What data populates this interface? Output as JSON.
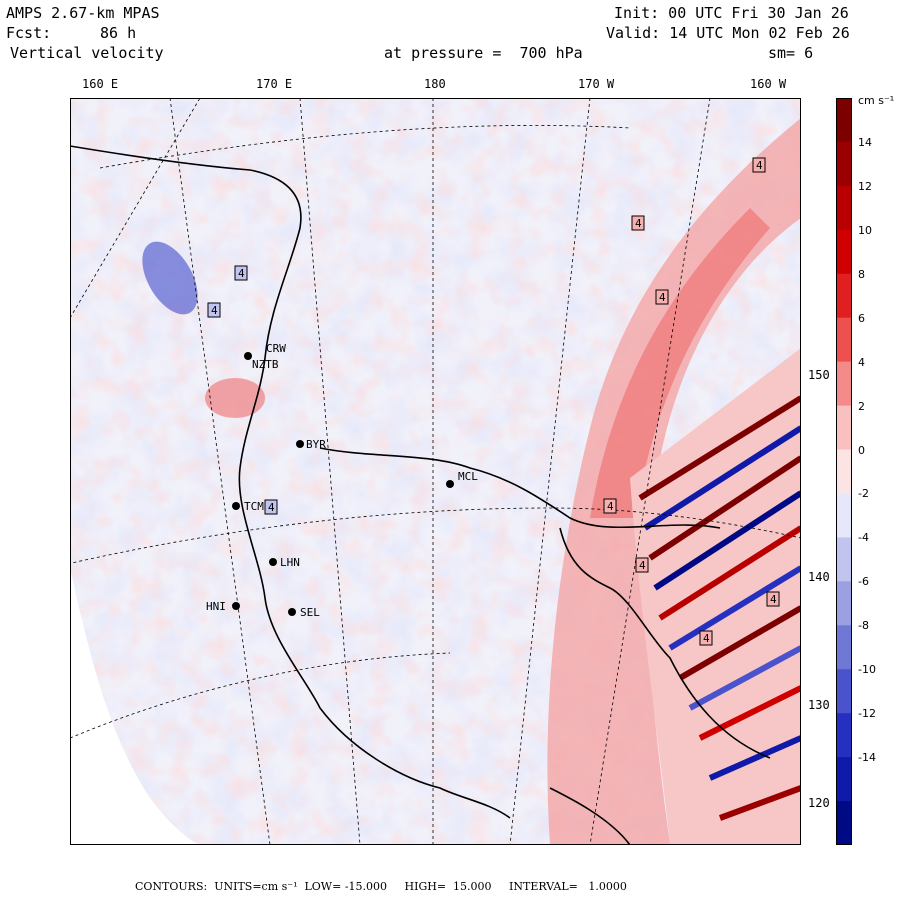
{
  "header": {
    "model": "AMPS 2.67-km MPAS",
    "forecast_label": "Fcst:",
    "forecast_hours": "86 h",
    "field": "Vertical velocity",
    "init": "Init: 00 UTC Fri 30 Jan 26",
    "valid": "Valid: 14 UTC Mon 02 Feb 26",
    "level": "at pressure =  700 hPa",
    "smoothing": "sm= 6"
  },
  "longitude_labels": [
    "160 E",
    "170 E",
    "180",
    "170 W",
    "160 W"
  ],
  "latitude_labels": [
    "150 W",
    "140 W",
    "130 W",
    "120 W"
  ],
  "colorbar": {
    "unit": "cm s⁻¹",
    "labels": [
      "14",
      "12",
      "10",
      "8",
      "6",
      "4",
      "2",
      "0",
      "-2",
      "-4",
      "-6",
      "-8",
      "-10",
      "-12",
      "-14"
    ],
    "colors": [
      "#7d0000",
      "#9a0000",
      "#b80000",
      "#d00000",
      "#e02020",
      "#ee5050",
      "#f58a8a",
      "#f9c0c0",
      "#fde4e4",
      "#e6e8fa",
      "#c0c4ef",
      "#9aa0e2",
      "#7078d6",
      "#4a52cc",
      "#2630c0",
      "#0f1aa8",
      "#000a85"
    ]
  },
  "stations": [
    "NZTB",
    "BYR",
    "TCM",
    "LHN",
    "SEL",
    "HNI",
    "MCL",
    "CRW"
  ],
  "contour_label": "4",
  "footer": {
    "contours": "CONTOURS:  UNITS=cm s⁻¹  LOW= -15.000     HIGH=  15.000     INTERVAL=   1.0000"
  }
}
